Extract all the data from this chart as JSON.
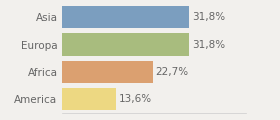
{
  "categories": [
    "Asia",
    "Europa",
    "Africa",
    "America"
  ],
  "values": [
    31.8,
    31.8,
    22.7,
    13.6
  ],
  "labels": [
    "31,8%",
    "31,8%",
    "22,7%",
    "13,6%"
  ],
  "bar_colors": [
    "#7b9ebf",
    "#a8bc7e",
    "#dba070",
    "#edd882"
  ],
  "background_color": "#f2f0ed",
  "xlim": [
    0,
    46
  ],
  "bar_height": 0.82,
  "label_fontsize": 7.5,
  "tick_fontsize": 7.5,
  "text_color": "#666666"
}
